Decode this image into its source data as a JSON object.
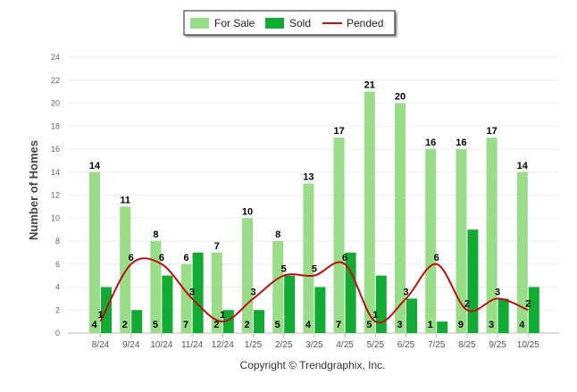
{
  "chart_data": {
    "type": "bar",
    "categories": [
      "8/24",
      "9/24",
      "10/24",
      "11/24",
      "12/24",
      "1/25",
      "2/25",
      "3/25",
      "4/25",
      "5/25",
      "6/25",
      "7/25",
      "8/25",
      "9/25",
      "10/25"
    ],
    "series": [
      {
        "name": "For Sale",
        "kind": "bar",
        "color": "#99dd88",
        "values": [
          14,
          11,
          8,
          6,
          7,
          10,
          8,
          13,
          17,
          21,
          20,
          16,
          16,
          17,
          14
        ]
      },
      {
        "name": "Sold",
        "kind": "bar",
        "color": "#11aa33",
        "values": [
          4,
          2,
          5,
          7,
          2,
          2,
          5,
          4,
          7,
          5,
          3,
          1,
          9,
          3,
          4
        ]
      },
      {
        "name": "Pended",
        "kind": "line",
        "color": "#bb1111",
        "values": [
          1,
          6,
          6,
          3,
          1,
          3,
          5,
          5,
          6,
          1,
          3,
          6,
          2,
          3,
          2
        ]
      }
    ],
    "xlabel": "",
    "ylabel": "Number of Homes",
    "ylim": [
      0,
      24
    ],
    "yticks": [
      0,
      2,
      4,
      6,
      8,
      10,
      12,
      14,
      16,
      18,
      20,
      22,
      24
    ],
    "grid": true,
    "legend_position": "top-center",
    "credit": "Copyright © Trendgraphix, Inc."
  }
}
